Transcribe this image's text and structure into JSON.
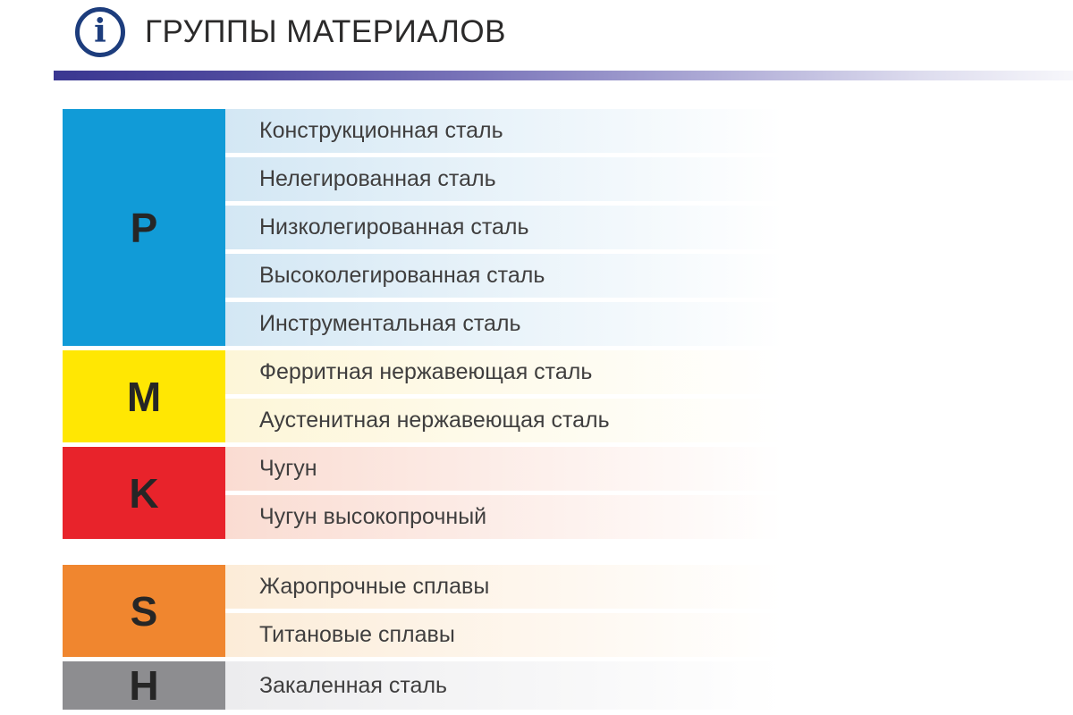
{
  "header": {
    "title": "ГРУППЫ МАТЕРИАЛОВ",
    "icon_glyph": "i"
  },
  "colors": {
    "icon_navy": "#1d3d7d",
    "divider_start": "#3a3791",
    "divider_end": "#f7f7fb",
    "letter_text": "#262626",
    "row_text": "#3f3e3e"
  },
  "groups": [
    {
      "letter": "P",
      "block_color": "#119bd7",
      "row_tint": "#d3e7f4",
      "materials": [
        "Конструкционная сталь",
        "Нелегированная сталь",
        "Низколегированная сталь",
        "Высоколегированная сталь",
        "Инструментальная сталь"
      ]
    },
    {
      "letter": "M",
      "block_color": "#ffe703",
      "row_tint": "#fdf6d8",
      "materials": [
        "Ферритная нержавеющая сталь",
        "Аустенитная нержавеющая сталь"
      ]
    },
    {
      "letter": "K",
      "block_color": "#e8232b",
      "row_tint": "#fadcd2",
      "materials": [
        "Чугун",
        "Чугун высокопрочный"
      ]
    },
    {
      "letter": "S",
      "block_color": "#f0862f",
      "row_tint": "#fcecd8",
      "materials": [
        "Жаропрочные сплавы",
        "Титановые сплавы"
      ],
      "gap_before": true
    },
    {
      "letter": "H",
      "block_color": "#8d8d90",
      "row_tint": "#ececee",
      "materials": [
        "Закаленная сталь"
      ],
      "tall_row": true
    }
  ]
}
